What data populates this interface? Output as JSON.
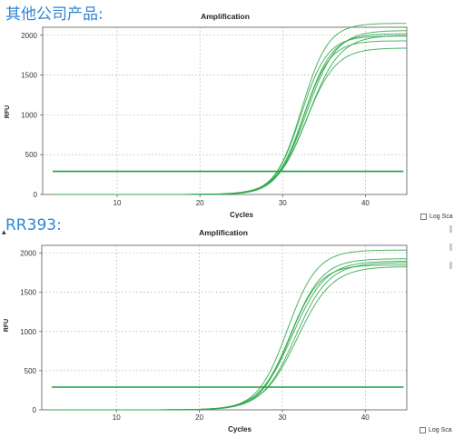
{
  "headings": {
    "top": "其他公司产品:",
    "bottom": "RR393:"
  },
  "colors": {
    "heading": "#2f86d6",
    "curve": "#2ea84a",
    "threshold": "#1f9e3c",
    "grid": "#9a9a9a"
  },
  "chart_data": [
    {
      "type": "line",
      "title": "Amplification",
      "xlabel": "Cycles",
      "ylabel": "RFU",
      "xlim": [
        1,
        45
      ],
      "ylim": [
        0,
        2100
      ],
      "xticks": [
        10,
        20,
        30,
        40
      ],
      "yticks": [
        0,
        500,
        1000,
        1500,
        2000
      ],
      "grid": true,
      "log_scale_checkbox_label": "Log Sca",
      "log_scale": false,
      "threshold": 290,
      "curve_model": "sigmoid: RFU = plateau / (1 + exp(-(cycle - midpoint) / slope))",
      "series": [
        {
          "plateau": 2150,
          "midpoint": 32.3,
          "slope": 1.6
        },
        {
          "plateau": 2020,
          "midpoint": 32.6,
          "slope": 1.7
        },
        {
          "plateau": 1990,
          "midpoint": 32.2,
          "slope": 1.6
        },
        {
          "plateau": 2060,
          "midpoint": 32.9,
          "slope": 1.8
        },
        {
          "plateau": 1930,
          "midpoint": 32.5,
          "slope": 1.6
        },
        {
          "plateau": 2000,
          "midpoint": 33.1,
          "slope": 1.9
        },
        {
          "plateau": 1840,
          "midpoint": 32.8,
          "slope": 1.8
        }
      ]
    },
    {
      "type": "line",
      "title": "Amplification",
      "xlabel": "Cycles",
      "ylabel": "RFU",
      "xlim": [
        1,
        45
      ],
      "ylim": [
        0,
        2100
      ],
      "xticks": [
        10,
        20,
        30,
        40
      ],
      "yticks": [
        0,
        500,
        1000,
        1500,
        2000
      ],
      "grid": true,
      "log_scale_checkbox_label": "Log Sca",
      "log_scale": false,
      "threshold": 290,
      "curve_model": "sigmoid: RFU = plateau / (1 + exp(-(cycle - midpoint) / slope))",
      "series": [
        {
          "plateau": 2040,
          "midpoint": 30.6,
          "slope": 1.8
        },
        {
          "plateau": 1930,
          "midpoint": 31.0,
          "slope": 1.9
        },
        {
          "plateau": 1900,
          "midpoint": 31.2,
          "slope": 2.0
        },
        {
          "plateau": 1880,
          "midpoint": 31.6,
          "slope": 2.0
        },
        {
          "plateau": 1850,
          "midpoint": 30.9,
          "slope": 1.8
        },
        {
          "plateau": 1830,
          "midpoint": 31.8,
          "slope": 2.1
        }
      ]
    }
  ]
}
